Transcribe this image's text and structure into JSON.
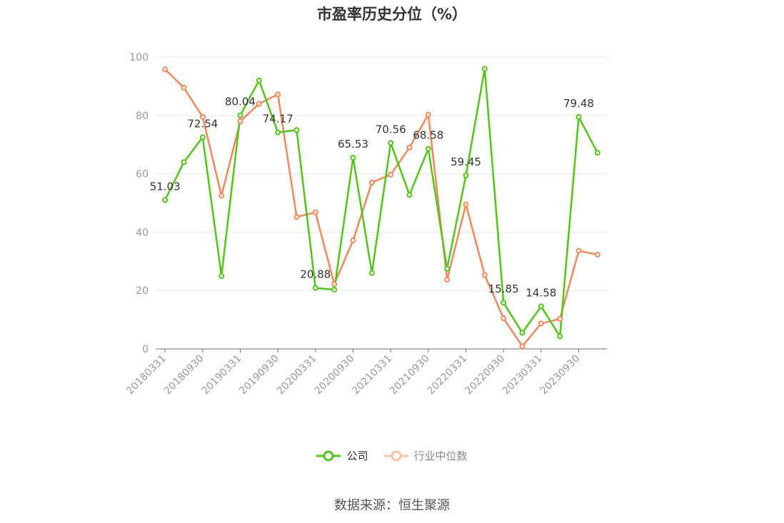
{
  "chart_data": {
    "type": "line",
    "title": "市盈率历史分位（%）",
    "xlabel": "",
    "ylabel": "",
    "ylim": [
      0,
      100
    ],
    "yticks": [
      0,
      20,
      40,
      60,
      80,
      100
    ],
    "grid": true,
    "legend_position": "bottom",
    "x": [
      "20180331",
      "20180630",
      "20180930",
      "20181231",
      "20190331",
      "20190630",
      "20190930",
      "20191231",
      "20200331",
      "20200630",
      "20200930",
      "20201231",
      "20210331",
      "20210630",
      "20210930",
      "20211231",
      "20220331",
      "20220630",
      "20220930",
      "20221231",
      "20230331",
      "20230630",
      "20230930",
      "20231231"
    ],
    "x_tick_labels": [
      "20180331",
      "20180930",
      "20190331",
      "20190930",
      "20200331",
      "20200930",
      "20210331",
      "20210930",
      "20220331",
      "20220930",
      "20230331",
      "20230930"
    ],
    "series": [
      {
        "name": "公司",
        "color": "#52c41a",
        "values": [
          51.03,
          64.0,
          72.54,
          25.0,
          80.04,
          92.0,
          74.17,
          75.0,
          20.88,
          20.3,
          65.53,
          26.0,
          70.56,
          52.8,
          68.58,
          27.5,
          59.45,
          96.0,
          15.85,
          5.5,
          14.58,
          4.3,
          79.48,
          67.2
        ],
        "data_labels": [
          "51.03",
          "",
          "72.54",
          "",
          "80.04",
          "",
          "74.17",
          "",
          "20.88",
          "",
          "65.53",
          "",
          "70.56",
          "",
          "68.58",
          "",
          "59.45",
          "",
          "15.85",
          "",
          "14.58",
          "",
          "79.48",
          ""
        ]
      },
      {
        "name": "行业中位数",
        "color": "#f0885a",
        "values": [
          95.8,
          89.5,
          79.5,
          52.5,
          78.0,
          84.0,
          87.2,
          45.2,
          46.8,
          22.2,
          37.2,
          57.0,
          59.7,
          69.0,
          80.3,
          23.7,
          49.5,
          25.3,
          10.5,
          0.9,
          8.7,
          10.3,
          33.6,
          32.3
        ]
      }
    ]
  },
  "source": {
    "text": "数据来源：恒生聚源"
  }
}
